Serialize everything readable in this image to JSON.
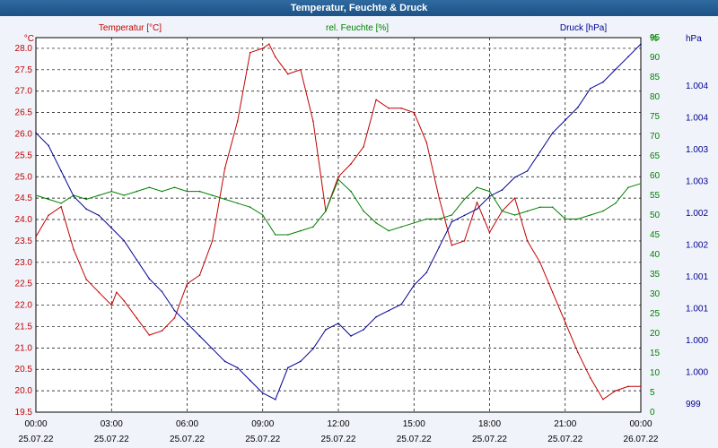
{
  "title": "Temperatur, Feuchte & Druck",
  "colors": {
    "temperature": "#c00000",
    "humidity": "#008000",
    "pressure": "#000090",
    "plot_bg": "#ffffff",
    "page_bg": "#f0f4fa"
  },
  "chart_data": {
    "type": "line",
    "title": "Temperatur, Feuchte & Druck",
    "x_ticks": [
      {
        "time": "00:00",
        "date": "25.07.22"
      },
      {
        "time": "03:00",
        "date": "25.07.22"
      },
      {
        "time": "06:00",
        "date": "25.07.22"
      },
      {
        "time": "09:00",
        "date": "25.07.22"
      },
      {
        "time": "12:00",
        "date": "25.07.22"
      },
      {
        "time": "15:00",
        "date": "25.07.22"
      },
      {
        "time": "18:00",
        "date": "25.07.22"
      },
      {
        "time": "21:00",
        "date": "25.07.22"
      },
      {
        "time": "00:00",
        "date": "26.07.22"
      }
    ],
    "xlim": [
      "25.07.22 00:00",
      "26.07.22 00:00"
    ],
    "grid": true,
    "axes": {
      "temperature": {
        "unit": "°C",
        "ylim": [
          19.5,
          28.25
        ],
        "ticks": [
          "19.5",
          "20.0",
          "20.5",
          "21.0",
          "21.5",
          "22.0",
          "22.5",
          "23.0",
          "23.5",
          "24.0",
          "24.5",
          "25.0",
          "25.5",
          "26.0",
          "26.5",
          "27.0",
          "27.5",
          "28.0"
        ]
      },
      "humidity": {
        "unit": "%",
        "ylim": [
          0,
          95
        ],
        "ticks": [
          "0",
          "5",
          "10",
          "15",
          "20",
          "25",
          "30",
          "35",
          "40",
          "45",
          "50",
          "55",
          "60",
          "65",
          "70",
          "75",
          "80",
          "85",
          "90",
          "95"
        ]
      },
      "pressure": {
        "unit": "hPa",
        "ylim": [
          998.6,
          1004.5
        ],
        "ticks": [
          "999",
          "1.000",
          "1.000",
          "1.001",
          "1.001",
          "1.002",
          "1.002",
          "1.003",
          "1.003",
          "1.004",
          "1.004"
        ]
      }
    },
    "series": [
      {
        "name": "Temperatur [°C]",
        "axis": "temperature",
        "x": [
          0,
          0.5,
          1,
          1.5,
          2,
          2.5,
          3,
          3.2,
          3.5,
          4,
          4.5,
          5,
          5.5,
          6,
          6.5,
          7,
          7.5,
          8,
          8.5,
          9,
          9.25,
          9.5,
          10,
          10.5,
          11,
          11.5,
          12,
          12.5,
          13,
          13.5,
          14,
          14.5,
          15,
          15.5,
          16,
          16.5,
          17,
          17.5,
          18,
          18.5,
          19,
          19.5,
          20,
          20.5,
          21,
          21.5,
          22,
          22.5,
          23,
          23.5,
          24
        ],
        "values": [
          23.6,
          24.1,
          24.3,
          23.3,
          22.6,
          22.3,
          22.0,
          22.3,
          22.1,
          21.7,
          21.3,
          21.4,
          21.7,
          22.5,
          22.7,
          23.5,
          25.2,
          26.3,
          27.9,
          28.0,
          28.1,
          27.8,
          27.4,
          27.5,
          26.3,
          24.2,
          25.0,
          25.3,
          25.7,
          26.8,
          26.6,
          26.6,
          26.5,
          25.8,
          24.5,
          23.4,
          23.5,
          24.4,
          23.7,
          24.2,
          24.5,
          23.5,
          23.0,
          22.3,
          21.6,
          20.9,
          20.3,
          19.8,
          20.0,
          20.1,
          20.1
        ]
      },
      {
        "name": "rel. Feuchte [%]",
        "axis": "humidity",
        "x": [
          0,
          0.5,
          1,
          1.5,
          2,
          2.5,
          3,
          3.5,
          4,
          4.5,
          5,
          5.5,
          6,
          6.5,
          7,
          7.5,
          8,
          8.5,
          9,
          9.5,
          10,
          10.5,
          11,
          11.5,
          12,
          12.5,
          13,
          13.5,
          14,
          14.5,
          15,
          15.5,
          16,
          16.5,
          17,
          17.5,
          18,
          18.5,
          19,
          19.5,
          20,
          20.5,
          21,
          21.5,
          22,
          22.5,
          23,
          23.5,
          24
        ],
        "values": [
          55,
          54,
          53,
          55,
          54,
          55,
          56,
          55,
          56,
          57,
          56,
          57,
          56,
          56,
          55,
          54,
          53,
          52,
          50,
          45,
          45,
          46,
          47,
          51,
          59,
          56,
          51,
          48,
          46,
          47,
          48,
          49,
          49,
          50,
          54,
          57,
          56,
          51,
          50,
          51,
          52,
          52,
          49,
          49,
          50,
          51,
          53,
          57,
          58
        ]
      },
      {
        "name": "Druck [hPa]",
        "axis": "pressure",
        "x": [
          0,
          0.5,
          1,
          1.5,
          2,
          2.5,
          3,
          3.5,
          4,
          4.5,
          5,
          5.5,
          6,
          6.5,
          7,
          7.5,
          8,
          8.5,
          9,
          9.5,
          10,
          10.5,
          11,
          11.5,
          12,
          12.5,
          13,
          13.5,
          14,
          14.5,
          15,
          15.5,
          16,
          16.5,
          17,
          17.5,
          18,
          18.5,
          19,
          19.5,
          20,
          20.5,
          21,
          21.5,
          22,
          22.5,
          23,
          23.5,
          24
        ],
        "values": [
          1003.0,
          1002.8,
          1002.4,
          1002.0,
          1001.8,
          1001.7,
          1001.5,
          1001.3,
          1001.0,
          1000.7,
          1000.5,
          1000.2,
          1000.0,
          999.8,
          999.6,
          999.4,
          999.3,
          999.1,
          998.9,
          998.8,
          999.3,
          999.4,
          999.6,
          999.9,
          1000.0,
          999.8,
          999.9,
          1000.1,
          1000.2,
          1000.3,
          1000.6,
          1000.8,
          1001.2,
          1001.6,
          1001.7,
          1001.8,
          1002.0,
          1002.1,
          1002.3,
          1002.4,
          1002.7,
          1003.0,
          1003.2,
          1003.4,
          1003.7,
          1003.8,
          1004.0,
          1004.2,
          1004.4
        ]
      }
    ]
  }
}
